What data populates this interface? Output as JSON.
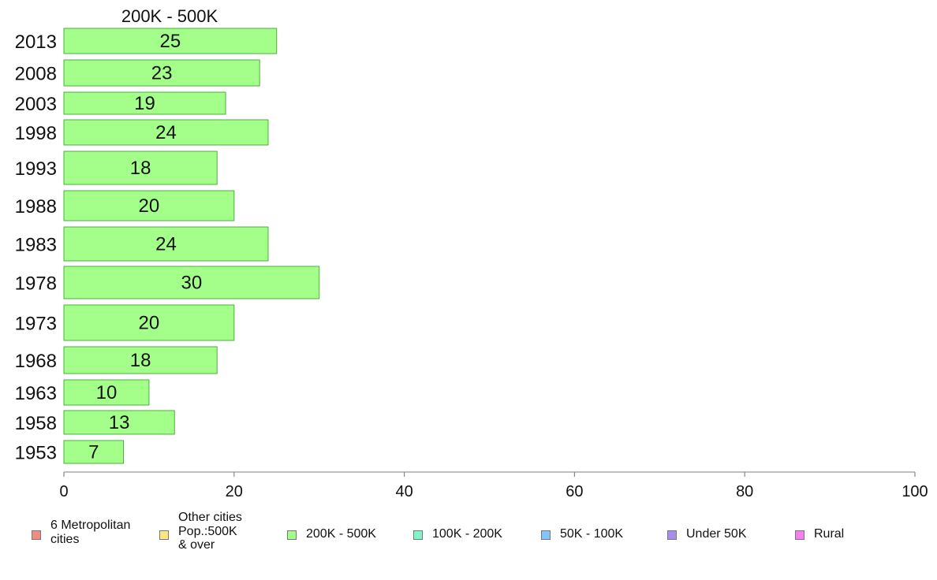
{
  "chart_data": {
    "type": "bar",
    "orientation": "horizontal",
    "title": "200K - 500K",
    "categories": [
      "2013",
      "2008",
      "2003",
      "1998",
      "1993",
      "1988",
      "1983",
      "1978",
      "1973",
      "1968",
      "1963",
      "1958",
      "1953"
    ],
    "values": [
      25,
      23,
      19,
      24,
      18,
      20,
      24,
      30,
      20,
      18,
      10,
      13,
      7
    ],
    "xlim": [
      0,
      100
    ],
    "xticks": [
      "0",
      "20",
      "40",
      "60",
      "80",
      "100"
    ],
    "grid": false,
    "legend_placement": "bottom",
    "legend": [
      {
        "label": "6 Metropolitan\n cities",
        "color": "#f28b82"
      },
      {
        "label": "Other cities\nPop.:500K\n & over",
        "color": "#fce883"
      },
      {
        "label": "200K - 500K",
        "color": "#a3ff8a"
      },
      {
        "label": "100K - 200K",
        "color": "#7ff5c8"
      },
      {
        "label": "50K - 100K",
        "color": "#82c4ff"
      },
      {
        "label": "Under 50K",
        "color": "#a98cf2"
      },
      {
        "label": "Rural",
        "color": "#f77ef0"
      }
    ],
    "bar_color": "#a3ff8a",
    "bar_edge_color": "#4caf3c"
  }
}
